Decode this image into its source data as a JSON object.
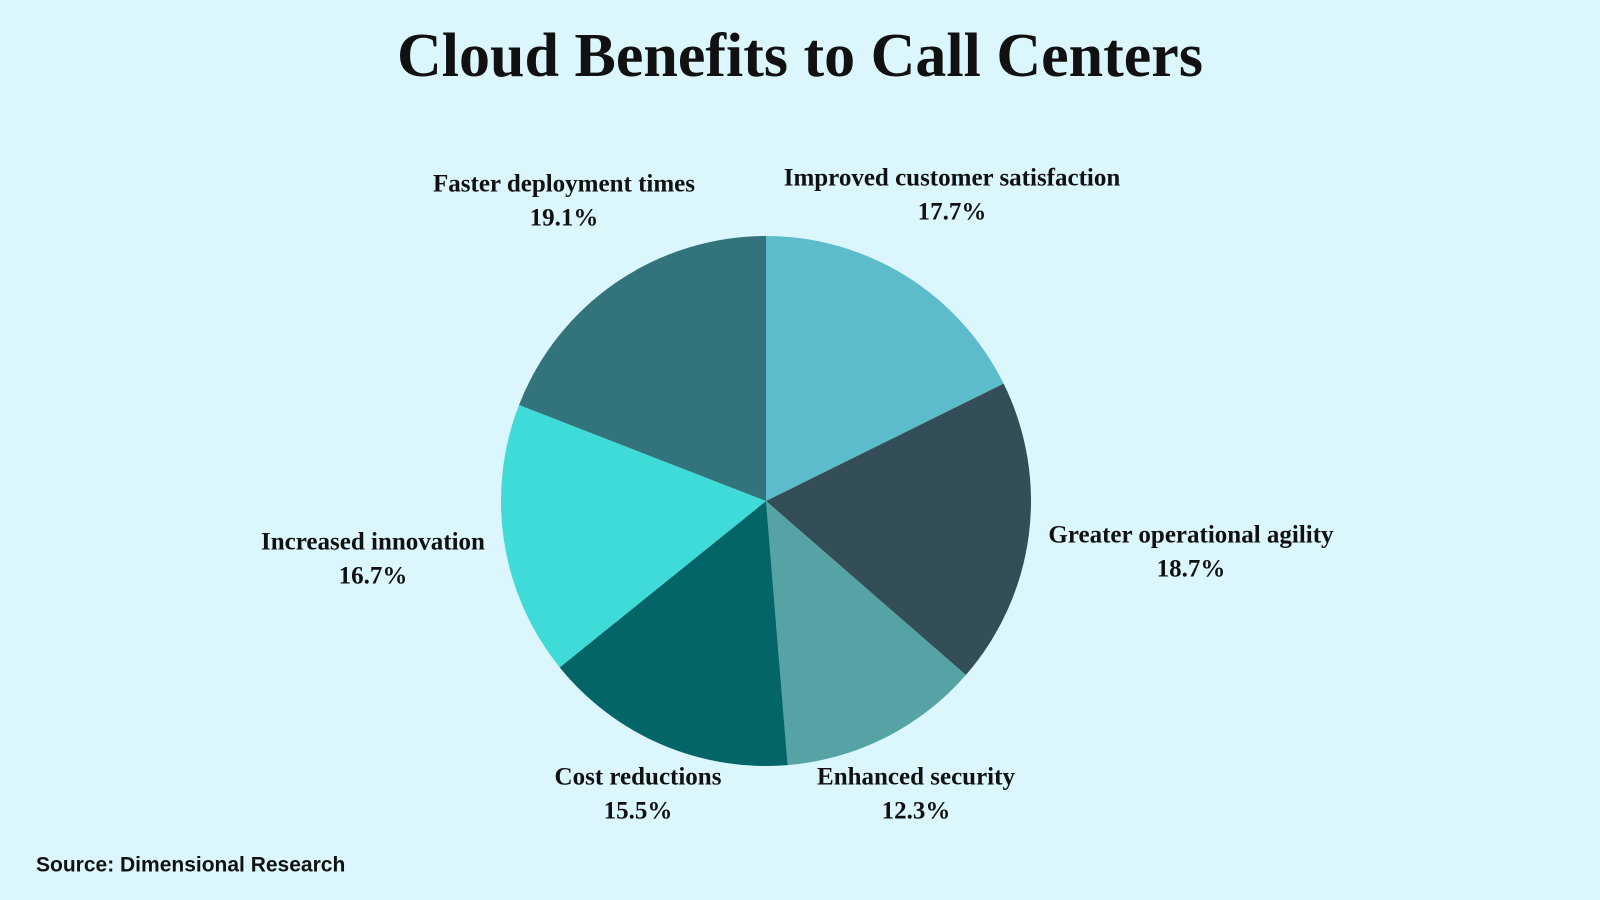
{
  "chart_data": {
    "type": "pie",
    "title": "Cloud Benefits to Call Centers",
    "categories": [
      "Improved customer satisfaction",
      "Greater operational agility",
      "Enhanced security",
      "Cost reductions",
      "Increased innovation",
      "Faster deployment times"
    ],
    "values": [
      17.7,
      18.7,
      12.3,
      15.5,
      16.7,
      19.1
    ],
    "value_labels": [
      "17.7%",
      "18.7%",
      "12.3%",
      "15.5%",
      "16.7%",
      "19.1%"
    ],
    "colors": [
      "#5dbccc",
      "#334e56",
      "#55a3a5",
      "#036568",
      "#3fdbd9",
      "#33737c"
    ],
    "source": "Source: Dimensional Research"
  }
}
